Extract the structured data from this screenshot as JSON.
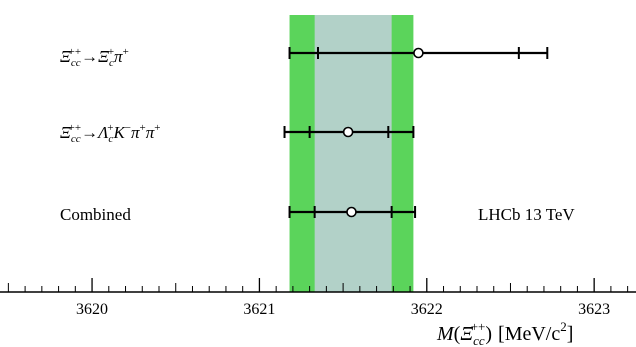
{
  "chart_data": {
    "type": "scatter",
    "title": "",
    "xlabel": "M(Ξcc++) [MeV/c²]",
    "xlabel_parts": {
      "m": "M",
      "open": "(",
      "xi": "Ξ",
      "sub": "cc",
      "sup": "++",
      "close": ")",
      "units": "[MeV/c",
      "units_sup": "2",
      "units_close": "]"
    },
    "ylabel": "",
    "xlim": [
      3619.45,
      3623.25
    ],
    "xticks": [
      3620,
      3621,
      3622,
      3623
    ],
    "xtick_labels": [
      "3620",
      "3621",
      "3622",
      "3623"
    ],
    "grid": false,
    "legend": "none",
    "annotation": "LHCb 13 TeV",
    "band": {
      "center": 3621.55,
      "inner": [
        3621.33,
        3621.79
      ],
      "outer": [
        3621.18,
        3621.92
      ],
      "inner_color": "#b2d1c8",
      "outer_color": "#5bd45b"
    },
    "measurements": [
      {
        "label": "Ξcc++ → Ξc+ π+",
        "value": 3621.95,
        "stat": [
          3621.35,
          3622.55
        ],
        "total": [
          3621.18,
          3622.72
        ]
      },
      {
        "label": "Ξcc++ → Λc+ K− π+ π+",
        "value": 3621.53,
        "stat": [
          3621.3,
          3621.77
        ],
        "total": [
          3621.15,
          3621.92
        ]
      },
      {
        "label": "Combined",
        "value": 3621.55,
        "stat": [
          3621.33,
          3621.79
        ],
        "total": [
          3621.18,
          3621.93
        ]
      }
    ]
  },
  "labels": {
    "row1": {
      "xi": "Ξ",
      "sub": "cc",
      "sup": "++",
      "arrow": "→",
      "xi2": "Ξ",
      "sub2": "c",
      "sup2": "+",
      "pi": "π",
      "pisup": "+"
    },
    "row2": {
      "xi": "Ξ",
      "sub": "cc",
      "sup": "++",
      "arrow": "→",
      "lam": "Λ",
      "lsub": "c",
      "lsup": "+",
      "k": "K",
      "ksup": "−",
      "pi1": "π",
      "pi1sup": "+",
      "pi2": "π",
      "pi2sup": "+"
    },
    "row3": "Combined"
  }
}
